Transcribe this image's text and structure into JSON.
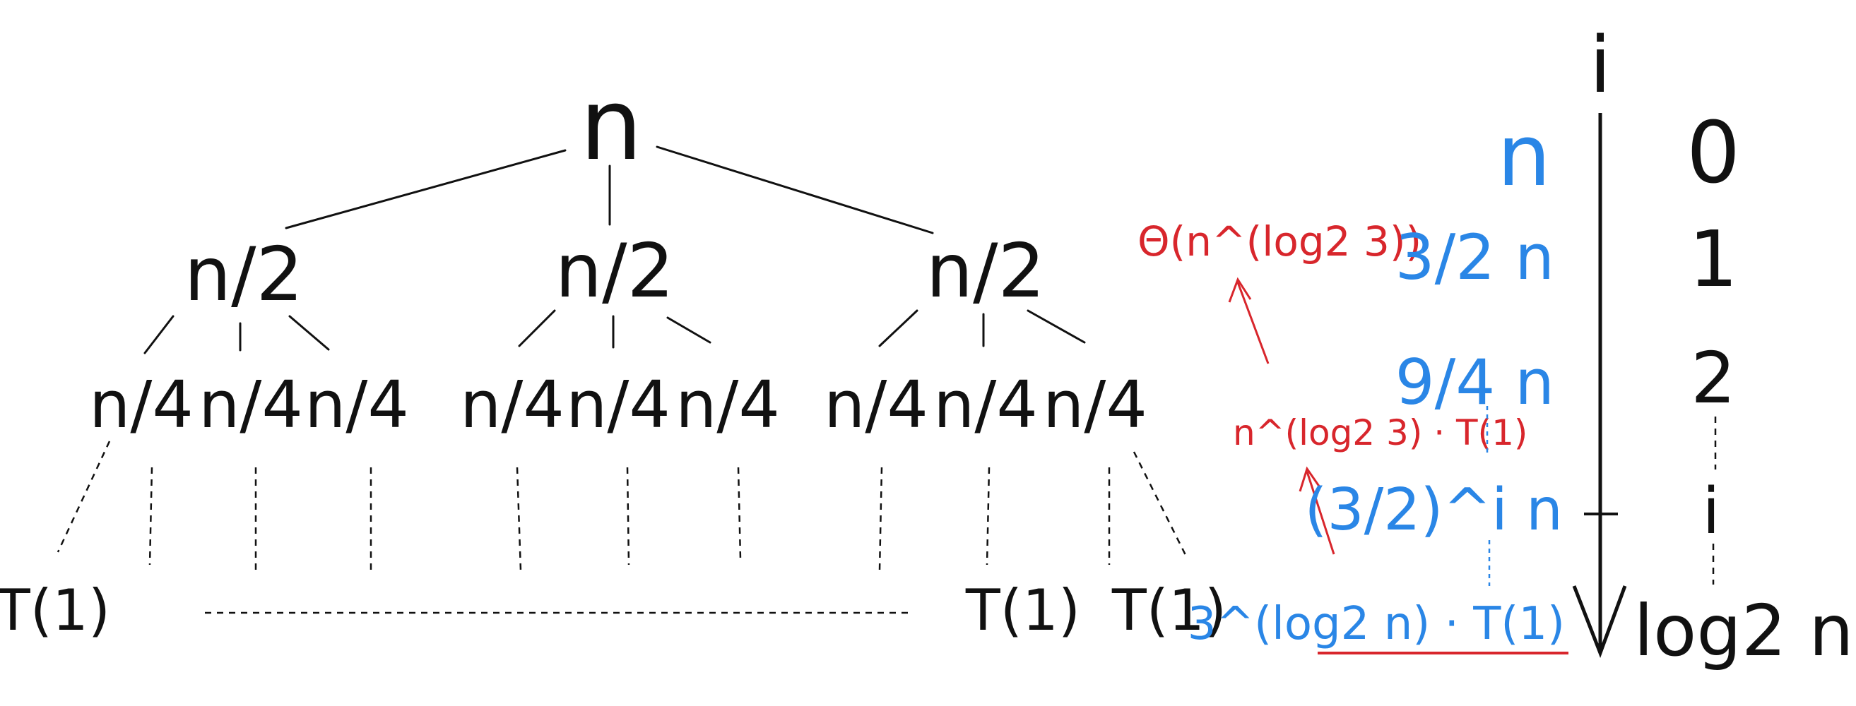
{
  "tree": {
    "root": "n",
    "level1": [
      "n/2",
      "n/2",
      "n/2"
    ],
    "level2": [
      "n/4",
      "n/4",
      "n/4",
      "n/4",
      "n/4",
      "n/4",
      "n/4",
      "n/4",
      "n/4"
    ],
    "leaf": "T(1)"
  },
  "side": {
    "axis_label": "i",
    "work": [
      "n",
      "3/2 n",
      "9/4 n",
      "(3/2)^i n",
      "3^(log2 n) · T(1)"
    ],
    "levels": [
      "0",
      "1",
      "2",
      "i",
      "log2 n"
    ]
  },
  "derivation": {
    "step1": "n^(log2 3) · T(1)",
    "step2": "Θ(n^(log2 3))"
  },
  "colors": {
    "black": "#111111",
    "blue": "#2a86e6",
    "red": "#d8262c"
  }
}
